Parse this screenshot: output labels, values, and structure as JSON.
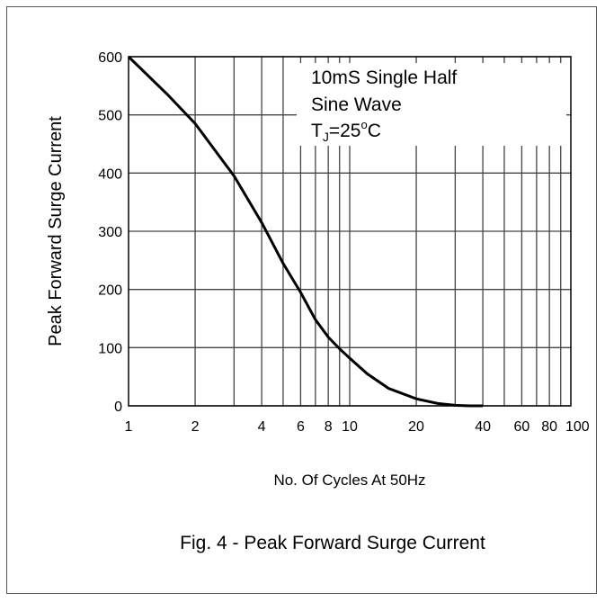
{
  "chart_data": {
    "type": "line",
    "title": "",
    "caption": "Fig. 4 - Peak Forward Surge Current",
    "xlabel": "No. Of Cycles At 50Hz",
    "ylabel": "Peak Forward Surge Current",
    "x_scale": "log",
    "xlim": [
      1,
      100
    ],
    "ylim": [
      0,
      600
    ],
    "x_ticks": [
      1,
      2,
      4,
      6,
      8,
      10,
      20,
      40,
      60,
      80,
      100
    ],
    "x_tick_labels": [
      "1",
      "2",
      "4",
      "6",
      "8",
      "10",
      "20",
      "40",
      "60",
      "80",
      "100"
    ],
    "y_ticks": [
      0,
      100,
      200,
      300,
      400,
      500,
      600
    ],
    "y_tick_labels": [
      "0",
      "100",
      "200",
      "300",
      "400",
      "500",
      "600"
    ],
    "grid": true,
    "annotation": {
      "line1": "10mS Single Half",
      "line2": "Sine Wave",
      "tj_prefix": "T",
      "tj_sub": "J",
      "tj_value": "=25",
      "tj_deg": "o",
      "tj_unit": "C"
    },
    "series": [
      {
        "x": [
          1,
          1.5,
          2,
          3,
          4,
          5,
          6,
          7,
          8,
          9,
          10,
          12,
          15,
          20,
          25,
          30,
          35,
          40
        ],
        "values": [
          600,
          535,
          485,
          395,
          315,
          245,
          195,
          148,
          118,
          98,
          82,
          55,
          30,
          12,
          4,
          1,
          0,
          0
        ]
      }
    ]
  }
}
